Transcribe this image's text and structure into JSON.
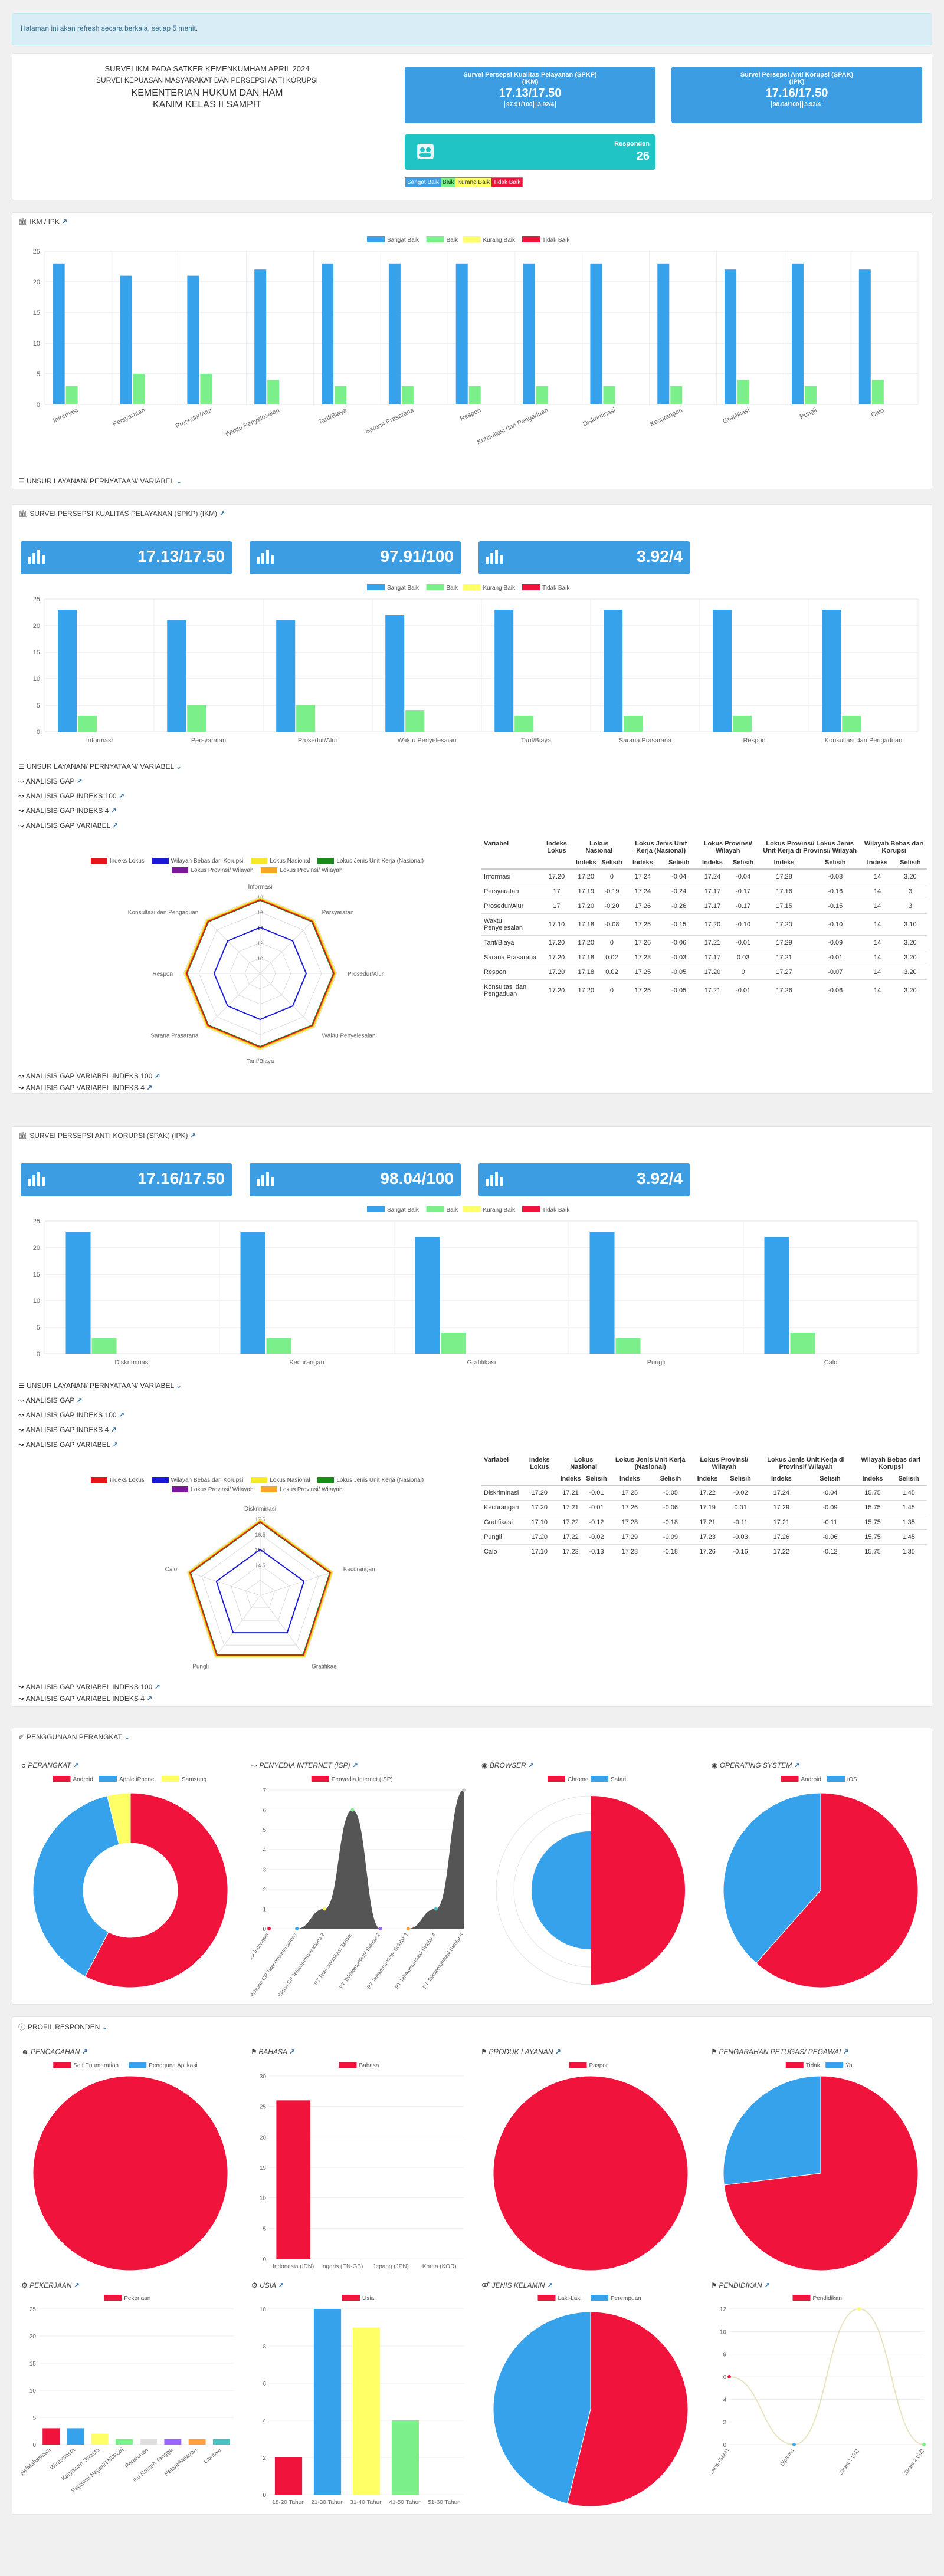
{
  "alert": "Halaman ini akan refresh secara berkala, setiap 5 menit.",
  "header": {
    "line1": "SURVEI IKM PADA SATKER KEMENKUMHAM APRIL 2024",
    "line2": "SURVEI KEPUASAN MASYARAKAT DAN PERSEPSI ANTI KORUPSI",
    "line3": "KEMENTERIAN HUKUM DAN HAM",
    "line4": "KANIM KELAS II SAMPIT"
  },
  "tiles": {
    "spkp_title": "Survei Persepsi Kualitas Pelayanan (SPKP)",
    "spkp_sub": "(IKM)",
    "spkp_value": "17.13/17.50",
    "spkp_b1": "97.91/100",
    "spkp_b2": "3.92/4",
    "spak_title": "Survei Persepsi Anti Korupsi (SPAK)",
    "spak_sub": "(IPK)",
    "spak_value": "17.16/17.50",
    "spak_b1": "98.04/100",
    "spak_b2": "3.92/4",
    "resp_label": "Responden",
    "resp_value": "26",
    "legend": [
      "Sangat Baik",
      "Baik",
      "Kurang Baik",
      "Tidak Baik"
    ]
  },
  "colors": {
    "sangat_baik": "#36a2eb",
    "baik": "#7bf08a",
    "kurang_baik": "#ffff66",
    "tidak_baik": "#f0143c"
  },
  "ikm_ipk": {
    "title": "IKM / IPK",
    "toggle": "UNSUR LAYANAN/ PERNYATAAN/ VARIABEL",
    "chart_data": {
      "type": "bar",
      "categories": [
        "Informasi",
        "Persyaratan",
        "Prosedur/Alur",
        "Waktu Penyelesaian",
        "Tarif/Biaya",
        "Sarana Prasarana",
        "Respon",
        "Konsultasi dan Pengaduan",
        "Diskriminasi",
        "Kecurangan",
        "Gratifikasi",
        "Pungli",
        "Calo"
      ],
      "series": [
        {
          "name": "Sangat Baik",
          "values": [
            23,
            21,
            21,
            22,
            23,
            23,
            23,
            23,
            23,
            23,
            22,
            23,
            22
          ]
        },
        {
          "name": "Baik",
          "values": [
            3,
            5,
            5,
            4,
            3,
            3,
            3,
            3,
            3,
            3,
            4,
            3,
            4
          ]
        },
        {
          "name": "Kurang Baik",
          "values": [
            0,
            0,
            0,
            0,
            0,
            0,
            0,
            0,
            0,
            0,
            0,
            0,
            0
          ]
        },
        {
          "name": "Tidak Baik",
          "values": [
            0,
            0,
            0,
            0,
            0,
            0,
            0,
            0,
            0,
            0,
            0,
            0,
            0
          ]
        }
      ],
      "ylim": [
        0,
        25
      ]
    }
  },
  "spkp": {
    "title": "SURVEI PERSEPSI KUALITAS PELAYANAN (SPKP) (IKM)",
    "stats": [
      "17.13/17.50",
      "97.91/100",
      "3.92/4"
    ],
    "toggles": [
      "UNSUR LAYANAN/ PERNYATAAN/ VARIABEL",
      "ANALISIS GAP",
      "ANALISIS GAP INDEKS 100",
      "ANALISIS GAP INDEKS 4",
      "ANALISIS GAP VARIABEL"
    ],
    "bottom_toggles": [
      "ANALISIS GAP VARIABEL INDEKS 100",
      "ANALISIS GAP VARIABEL INDEKS 4"
    ],
    "chart_data": {
      "type": "bar",
      "categories": [
        "Informasi",
        "Persyaratan",
        "Prosedur/Alur",
        "Waktu Penyelesaian",
        "Tarif/Biaya",
        "Sarana Prasarana",
        "Respon",
        "Konsultasi dan Pengaduan"
      ],
      "series": [
        {
          "name": "Sangat Baik",
          "values": [
            23,
            21,
            21,
            22,
            23,
            23,
            23,
            23
          ]
        },
        {
          "name": "Baik",
          "values": [
            3,
            5,
            5,
            4,
            3,
            3,
            3,
            3
          ]
        },
        {
          "name": "Kurang Baik",
          "values": [
            0,
            0,
            0,
            0,
            0,
            0,
            0,
            0
          ]
        },
        {
          "name": "Tidak Baik",
          "values": [
            0,
            0,
            0,
            0,
            0,
            0,
            0,
            0
          ]
        }
      ],
      "ylim": [
        0,
        25
      ]
    },
    "radar_legend": [
      "Indeks Lokus",
      "Wilayah Bebas dari Korupsi",
      "Lokus Nasional",
      "Lokus Jenis Unit Kerja (Nasional)",
      "Lokus Provinsi/ Wilayah",
      "Lokus Provinsi/ Wilayah"
    ],
    "radar_ticks": [
      "18",
      "16",
      "14",
      "12",
      "10"
    ],
    "table": {
      "head": [
        "Variabel",
        "Indeks Lokus",
        "Lokus Nasional",
        "Lokus Jenis Unit Kerja (Nasional)",
        "Lokus Provinsi/ Wilayah",
        "Lokus Provinsi/ Lokus Jenis Unit Kerja di Provinsi/ Wilayah",
        "Wilayah Bebas dari Korupsi"
      ],
      "sub": [
        "",
        "",
        "Indeks",
        "Selisih",
        "Indeks",
        "Selisih",
        "Indeks",
        "Selisih",
        "Indeks",
        "Selisih",
        "Indeks",
        "Selisih"
      ],
      "rows": [
        [
          "Informasi",
          "17.20",
          "17.20",
          "0",
          "17.24",
          "-0.04",
          "17.24",
          "-0.04",
          "17.28",
          "-0.08",
          "14",
          "3.20"
        ],
        [
          "Persyaratan",
          "17",
          "17.19",
          "-0.19",
          "17.24",
          "-0.24",
          "17.17",
          "-0.17",
          "17.16",
          "-0.16",
          "14",
          "3"
        ],
        [
          "Prosedur/Alur",
          "17",
          "17.20",
          "-0.20",
          "17.26",
          "-0.26",
          "17.17",
          "-0.17",
          "17.15",
          "-0.15",
          "14",
          "3"
        ],
        [
          "Waktu Penyelesaian",
          "17.10",
          "17.18",
          "-0.08",
          "17.25",
          "-0.15",
          "17.20",
          "-0.10",
          "17.20",
          "-0.10",
          "14",
          "3.10"
        ],
        [
          "Tarif/Biaya",
          "17.20",
          "17.20",
          "0",
          "17.26",
          "-0.06",
          "17.21",
          "-0.01",
          "17.29",
          "-0.09",
          "14",
          "3.20"
        ],
        [
          "Sarana Prasarana",
          "17.20",
          "17.18",
          "0.02",
          "17.23",
          "-0.03",
          "17.17",
          "0.03",
          "17.21",
          "-0.01",
          "14",
          "3.20"
        ],
        [
          "Respon",
          "17.20",
          "17.18",
          "0.02",
          "17.25",
          "-0.05",
          "17.20",
          "0",
          "17.27",
          "-0.07",
          "14",
          "3.20"
        ],
        [
          "Konsultasi dan Pengaduan",
          "17.20",
          "17.20",
          "0",
          "17.25",
          "-0.05",
          "17.21",
          "-0.01",
          "17.26",
          "-0.06",
          "14",
          "3.20"
        ]
      ]
    }
  },
  "spak": {
    "title": "SURVEI PERSEPSI ANTI KORUPSI (SPAK) (IPK)",
    "stats": [
      "17.16/17.50",
      "98.04/100",
      "3.92/4"
    ],
    "toggles": [
      "UNSUR LAYANAN/ PERNYATAAN/ VARIABEL",
      "ANALISIS GAP",
      "ANALISIS GAP INDEKS 100",
      "ANALISIS GAP INDEKS 4",
      "ANALISIS GAP VARIABEL"
    ],
    "bottom_toggles": [
      "ANALISIS GAP VARIABEL INDEKS 100",
      "ANALISIS GAP VARIABEL INDEKS 4"
    ],
    "chart_data": {
      "type": "bar",
      "categories": [
        "Diskriminasi",
        "Kecurangan",
        "Gratifikasi",
        "Pungli",
        "Calo"
      ],
      "series": [
        {
          "name": "Sangat Baik",
          "values": [
            23,
            23,
            22,
            23,
            22
          ]
        },
        {
          "name": "Baik",
          "values": [
            3,
            3,
            4,
            3,
            4
          ]
        },
        {
          "name": "Kurang Baik",
          "values": [
            0,
            0,
            0,
            0,
            0
          ]
        },
        {
          "name": "Tidak Baik",
          "values": [
            0,
            0,
            0,
            0,
            0
          ]
        }
      ],
      "ylim": [
        0,
        25
      ]
    },
    "radar_legend": [
      "Indeks Lokus",
      "Wilayah Bebas dari Korupsi",
      "Lokus Nasional",
      "Lokus Jenis Unit Kerja (Nasional)",
      "Lokus Provinsi/ Wilayah",
      "Lokus Provinsi/ Wilayah"
    ],
    "radar_ticks": [
      "17.5",
      "16.5",
      "15.5",
      "14.5"
    ],
    "table": {
      "head": [
        "Variabel",
        "Indeks Lokus",
        "Lokus Nasional",
        "Lokus Jenis Unit Kerja (Nasional)",
        "Lokus Provinsi/ Wilayah",
        "Lokus Jenis Unit Kerja di Provinsi/ Wilayah",
        "Wilayah Bebas dari Korupsi"
      ],
      "sub": [
        "",
        "",
        "Indeks",
        "Selisih",
        "Indeks",
        "Selisih",
        "Indeks",
        "Selisih",
        "Indeks",
        "Selisih",
        "Indeks",
        "Selisih"
      ],
      "rows": [
        [
          "Diskriminasi",
          "17.20",
          "17.21",
          "-0.01",
          "17.25",
          "-0.05",
          "17.22",
          "-0.02",
          "17.24",
          "-0.04",
          "15.75",
          "1.45"
        ],
        [
          "Kecurangan",
          "17.20",
          "17.21",
          "-0.01",
          "17.26",
          "-0.06",
          "17.19",
          "0.01",
          "17.29",
          "-0.09",
          "15.75",
          "1.45"
        ],
        [
          "Gratifikasi",
          "17.10",
          "17.22",
          "-0.12",
          "17.28",
          "-0.18",
          "17.21",
          "-0.11",
          "17.21",
          "-0.11",
          "15.75",
          "1.35"
        ],
        [
          "Pungli",
          "17.20",
          "17.22",
          "-0.02",
          "17.29",
          "-0.09",
          "17.23",
          "-0.03",
          "17.26",
          "-0.06",
          "15.75",
          "1.45"
        ],
        [
          "Calo",
          "17.10",
          "17.23",
          "-0.13",
          "17.28",
          "-0.18",
          "17.26",
          "-0.16",
          "17.22",
          "-0.12",
          "15.75",
          "1.35"
        ]
      ]
    }
  },
  "devices": {
    "title": "PENGGUNAAN PERANGKAT",
    "perangkat": {
      "title": "PERANGKAT",
      "legend": [
        "Android",
        "Apple iPhone",
        "Samsung"
      ],
      "values": [
        15,
        10,
        1
      ]
    },
    "isp": {
      "title": "PENYEDIA INTERNET (ISP)",
      "legend": "Penyedia Internet (ISP)",
      "yticks": [
        "7",
        "6",
        "5",
        "4",
        "3",
        "2",
        "1",
        "0"
      ],
      "labels": [
        "PT Telekomunikasi Indonesia",
        "Hutchison CP Telecommunications",
        "Hutchison CP Telecommunications 2",
        "PT Telekomunikasi Selular",
        "PT Telekomunikasi Selular 2",
        "PT Telekomunikasi Selular 3",
        "PT Telekomunikasi Selular 4",
        "PT Telekomunikasi Selular 5"
      ],
      "values": [
        0,
        0,
        1,
        6,
        0,
        0,
        1,
        7
      ]
    },
    "browser": {
      "title": "BROWSER",
      "legend": [
        "Chrome",
        "Safari"
      ],
      "values": [
        16,
        10
      ]
    },
    "os": {
      "title": "OPERATING SYSTEM",
      "legend": [
        "Android",
        "iOS"
      ],
      "values": [
        16,
        10
      ]
    }
  },
  "profile": {
    "title": "PROFIL RESPONDEN",
    "pencacahan": {
      "title": "PENCACAHAN",
      "legend": [
        "Self Enumeration",
        "Pengguna Aplikasi"
      ],
      "values": [
        26,
        0
      ]
    },
    "bahasa": {
      "title": "BAHASA",
      "legend": "Bahasa",
      "labels": [
        "Indonesia (IDN)",
        "Inggris (EN-GB)",
        "Jepang (JPN)",
        "Korea (KOR)"
      ],
      "values": [
        26,
        0,
        0,
        0
      ],
      "yticks": [
        "30",
        "25",
        "20",
        "15",
        "10",
        "5",
        "0"
      ]
    },
    "produk": {
      "title": "PRODUK LAYANAN",
      "legend": [
        "Paspor"
      ],
      "values": [
        26
      ]
    },
    "pengarahan": {
      "title": "PENGARAHAN PETUGAS/ PEGAWAI",
      "legend": [
        "Tidak",
        "Ya"
      ],
      "values": [
        19,
        7
      ]
    },
    "pekerjaan": {
      "title": "PEKERJAAN",
      "legend": "Pekerjaan",
      "labels": [
        "Pelajar/Mahasiswa",
        "Wiraswasta",
        "Karyawan Swasta",
        "Pegawai Negeri/TNI/Polri",
        "Pensiunan",
        "Ibu Rumah Tangga",
        "Petani/Nelayan",
        "Lainnya"
      ],
      "values": [
        3,
        3,
        2,
        1,
        1,
        1,
        1,
        1
      ],
      "yticks": [
        "25",
        "20",
        "15",
        "10",
        "5",
        "0"
      ]
    },
    "usia": {
      "title": "USIA",
      "legend": "Usia",
      "labels": [
        "18-20 Tahun",
        "21-30 Tahun",
        "31-40 Tahun",
        "41-50 Tahun",
        "51-60 Tahun"
      ],
      "values": [
        2,
        10,
        9,
        4,
        0
      ],
      "yticks": [
        "10",
        "8",
        "6",
        "4",
        "2",
        "0"
      ]
    },
    "jenis_kelamin": {
      "title": "JENIS KELAMIN",
      "legend": [
        "Laki-Laki",
        "Perempuan"
      ],
      "values": [
        14,
        12
      ]
    },
    "pendidikan": {
      "title": "PENDIDIKAN",
      "legend": "Pendidikan",
      "labels": [
        "Sekolah Menengah Atas (SMA)",
        "Diploma",
        "Strata 1 (S1)",
        "Strata 2 (S2)"
      ],
      "values": [
        6,
        0,
        12,
        0
      ],
      "yticks": [
        "12",
        "10",
        "8",
        "6",
        "4",
        "2",
        "0"
      ]
    }
  }
}
